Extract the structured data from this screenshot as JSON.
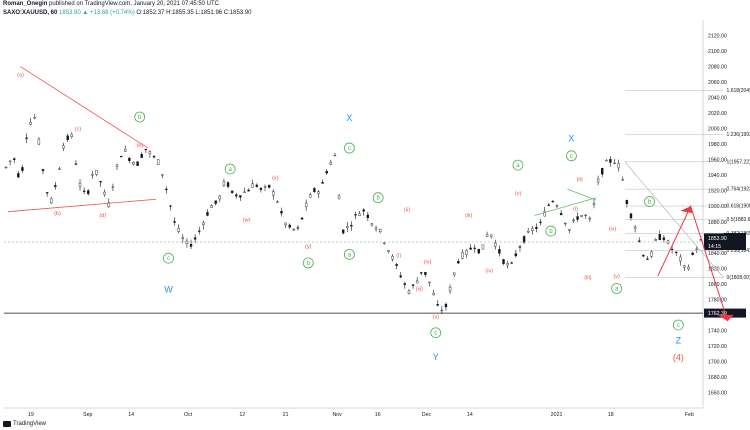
{
  "header": {
    "author": "Roman_Onegin",
    "published": "published on TradingView.com, January 20, 2021 07:45:50 UTC",
    "symbol": "SAXO:XAUUSD, 60",
    "change": "1853.90 ▲ +13.68 (+0.74%)",
    "ohlc": "O:1852.37 H:1855.35 L:1851.96 C:1853.90"
  },
  "footer": {
    "brand": "TradingView"
  },
  "colors": {
    "wave_red": "#ef5350",
    "wave_green": "#4caf50",
    "wave_blue": "#2196f3",
    "trend_line": "#ef5350",
    "channel_green": "#66bb6a",
    "fib_line": "#787b86",
    "arrow": "#f23645",
    "price_tag_bg": "#131722",
    "support_line": "#131722"
  },
  "chart_data": {
    "type": "candlestick",
    "symbol": "XAUUSD",
    "interval": "60",
    "y_range": [
      1640,
      2140
    ],
    "x_labels": [
      "19",
      "Sep",
      "14",
      "Oct",
      "12",
      "21",
      "Nov",
      "16",
      "Dec",
      "14",
      "2021",
      "18",
      "Feb"
    ],
    "y_ticks": [
      1660,
      1680,
      1700,
      1720,
      1740,
      1760,
      1780,
      1800,
      1820,
      1840,
      1860,
      1880,
      1900,
      1920,
      1940,
      1960,
      1980,
      2000,
      2020,
      2040,
      2060,
      2080,
      2100,
      2120
    ],
    "last_price": "1853.90",
    "countdown": "14:15",
    "support_price": "1762.30",
    "price_path": [
      1950,
      1965,
      1930,
      2005,
      2015,
      1950,
      1900,
      1935,
      1985,
      1990,
      1930,
      1910,
      1950,
      1930,
      1900,
      1945,
      1975,
      1960,
      1955,
      1975,
      1965,
      1955,
      1920,
      1880,
      1860,
      1848,
      1860,
      1880,
      1900,
      1905,
      1935,
      1915,
      1915,
      1920,
      1930,
      1920,
      1925,
      1910,
      1880,
      1870,
      1870,
      1900,
      1920,
      1920,
      1950,
      1965,
      1868,
      1875,
      1890,
      1895,
      1880,
      1870,
      1850,
      1830,
      1810,
      1790,
      1800,
      1820,
      1800,
      1770,
      1765,
      1805,
      1835,
      1840,
      1850,
      1840,
      1870,
      1850,
      1830,
      1820,
      1845,
      1860,
      1870,
      1875,
      1900,
      1910,
      1890,
      1870,
      1885,
      1890,
      1880,
      1935,
      1955,
      1960,
      1950,
      1900,
      1875,
      1840,
      1830,
      1860,
      1860,
      1845,
      1835,
      1815,
      1840,
      1855
    ],
    "fib_levels": [
      {
        "label": "1.618(2049.43)",
        "value": 2049.43
      },
      {
        "label": "1.236(1992.43)",
        "value": 1992.43
      },
      {
        "label": "1(1957.22)",
        "value": 1957.22
      },
      {
        "label": "0.764(1922.00)",
        "value": 1922.0
      },
      {
        "label": "0.618(1900.22)",
        "value": 1900.22
      },
      {
        "label": "0.5(1882.61)",
        "value": 1882.61
      },
      {
        "label": "0.382(1865.00)",
        "value": 1865.0
      },
      {
        "label": "0.236(1843.22)",
        "value": 1843.22
      },
      {
        "label": "0(1808.00)",
        "value": 1808.0
      }
    ],
    "wave_labels": [
      {
        "text": "(a)",
        "color": "red",
        "date_idx": 4,
        "price": 2070
      },
      {
        "text": "(b)",
        "color": "red",
        "date_idx": 13,
        "price": 1891
      },
      {
        "text": "(c)",
        "color": "red",
        "date_idx": 18,
        "price": 2000
      },
      {
        "text": "(d)",
        "color": "red",
        "date_idx": 24,
        "price": 1889
      },
      {
        "text": "(e)",
        "color": "red",
        "date_idx": 33,
        "price": 1979
      },
      {
        "text": "b",
        "color": "green-circle",
        "date_idx": 33,
        "price": 2015
      },
      {
        "text": "c",
        "color": "green-circle",
        "date_idx": 40,
        "price": 1833
      },
      {
        "text": "W",
        "color": "blue",
        "date_idx": 40,
        "price": 1793
      },
      {
        "text": "a",
        "color": "green-circle",
        "date_idx": 55,
        "price": 1948
      },
      {
        "text": "(w)",
        "color": "red",
        "date_idx": 59,
        "price": 1883
      },
      {
        "text": "(x)",
        "color": "red",
        "date_idx": 66,
        "price": 1937
      },
      {
        "text": "(y)",
        "color": "red",
        "date_idx": 74,
        "price": 1849
      },
      {
        "text": "b",
        "color": "green-circle",
        "date_idx": 74,
        "price": 1827
      },
      {
        "text": "X",
        "color": "blue",
        "date_idx": 84,
        "price": 2014
      },
      {
        "text": "c",
        "color": "green-circle",
        "date_idx": 84,
        "price": 1975
      },
      {
        "text": "a",
        "color": "green-circle",
        "date_idx": 84,
        "price": 1838
      },
      {
        "text": "b",
        "color": "green-circle",
        "date_idx": 91,
        "price": 1911
      },
      {
        "text": "(ii)",
        "color": "red",
        "date_idx": 98,
        "price": 1896
      },
      {
        "text": "(i)",
        "color": "red",
        "date_idx": 96,
        "price": 1837
      },
      {
        "text": "(iv)",
        "color": "red",
        "date_idx": 103,
        "price": 1829
      },
      {
        "text": "(iii)",
        "color": "red",
        "date_idx": 101,
        "price": 1794
      },
      {
        "text": "(v)",
        "color": "red",
        "date_idx": 105,
        "price": 1758
      },
      {
        "text": "c",
        "color": "green-circle",
        "date_idx": 105,
        "price": 1737
      },
      {
        "text": "Y",
        "color": "blue",
        "date_idx": 105,
        "price": 1706
      },
      {
        "text": "(iii)",
        "color": "red",
        "date_idx": 113,
        "price": 1889
      },
      {
        "text": "(iv)",
        "color": "red",
        "date_idx": 118,
        "price": 1817
      },
      {
        "text": "a",
        "color": "green-circle",
        "date_idx": 125,
        "price": 1953
      },
      {
        "text": "(v)",
        "color": "red",
        "date_idx": 125,
        "price": 1917
      },
      {
        "text": "b",
        "color": "green-circle",
        "date_idx": 133,
        "price": 1868
      },
      {
        "text": "X",
        "color": "blue",
        "date_idx": 138,
        "price": 1987
      },
      {
        "text": "c",
        "color": "green-circle",
        "date_idx": 138,
        "price": 1965
      },
      {
        "text": "(ii)",
        "color": "red",
        "date_idx": 140,
        "price": 1935
      },
      {
        "text": "(i)",
        "color": "red",
        "date_idx": 139,
        "price": 1897
      },
      {
        "text": "(iii)",
        "color": "red",
        "date_idx": 142,
        "price": 1809
      },
      {
        "text": "(iv)",
        "color": "red",
        "date_idx": 148,
        "price": 1871
      },
      {
        "text": "(v)",
        "color": "red",
        "date_idx": 149,
        "price": 1810
      },
      {
        "text": "a",
        "color": "green-circle",
        "date_idx": 149,
        "price": 1794
      },
      {
        "text": "b",
        "color": "green-circle",
        "date_idx": 157,
        "price": 1906
      },
      {
        "text": "c",
        "color": "green-circle",
        "date_idx": 164,
        "price": 1747
      },
      {
        "text": "Z",
        "color": "blue",
        "date_idx": 164,
        "price": 1727
      },
      {
        "text": "(4)",
        "color": "red-bold",
        "date_idx": 164,
        "price": 1705
      }
    ]
  }
}
